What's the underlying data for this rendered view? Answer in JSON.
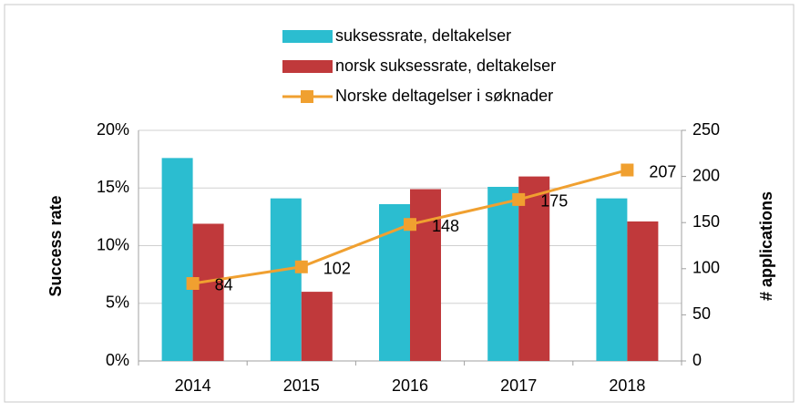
{
  "chart_data": {
    "type": "bar",
    "categories": [
      "2014",
      "2015",
      "2016",
      "2017",
      "2018"
    ],
    "series": [
      {
        "name": "suksessrate, deltakelser",
        "color": "#2bbdd0",
        "values": [
          17.6,
          14.1,
          13.6,
          15.1,
          14.1
        ]
      },
      {
        "name": "norsk suksessrate, deltakelser",
        "color": "#c0393b",
        "values": [
          11.9,
          6.0,
          14.9,
          16.0,
          12.1
        ]
      },
      {
        "name": "Norske deltagelser i søknader",
        "color": "#f0a030",
        "type": "line",
        "axis": "y2",
        "values": [
          84,
          102,
          148,
          175,
          207
        ]
      }
    ],
    "ylabel": "Success rate",
    "y2label": "# applications",
    "ylim": [
      0,
      20
    ],
    "yticks": [
      {
        "value": 0,
        "label": "0%"
      },
      {
        "value": 5,
        "label": "5%"
      },
      {
        "value": 10,
        "label": "10%"
      },
      {
        "value": 15,
        "label": "15%"
      },
      {
        "value": 20,
        "label": "20%"
      }
    ],
    "y2lim": [
      0,
      250
    ],
    "y2ticks": [
      0,
      50,
      100,
      150,
      200,
      250
    ],
    "grid": true,
    "legend": "top"
  }
}
